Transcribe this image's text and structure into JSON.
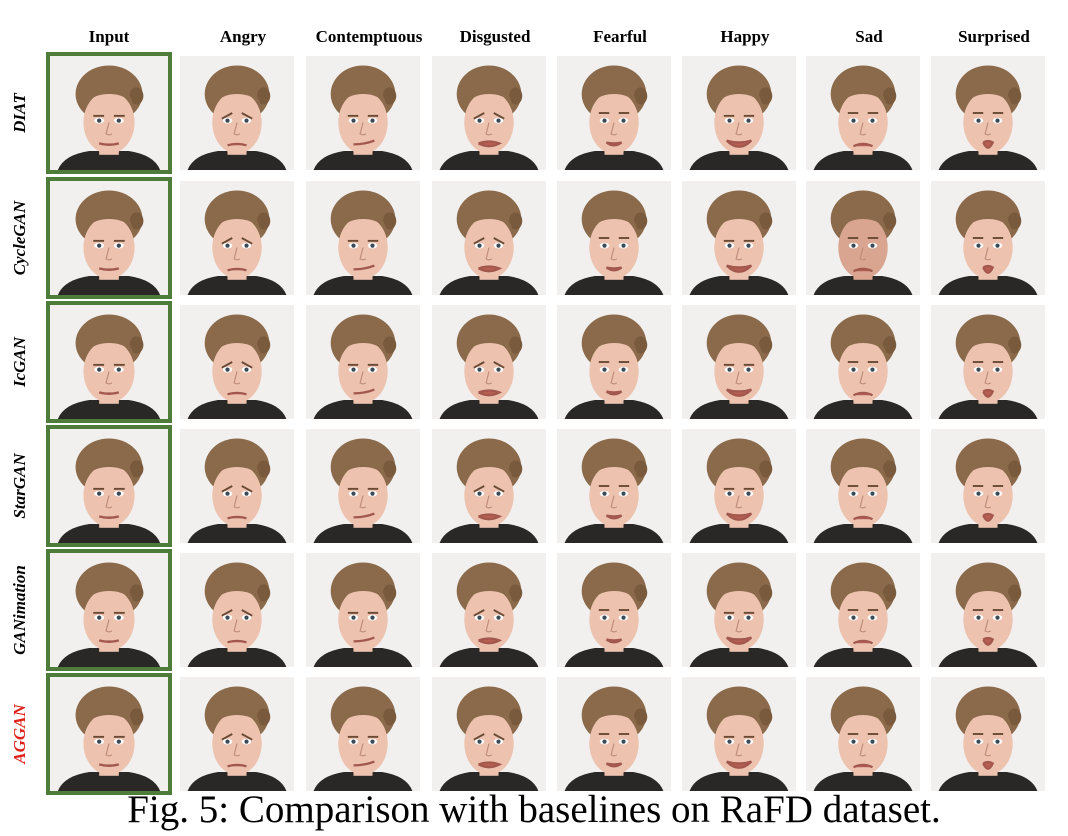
{
  "columns": [
    "Input",
    "Angry",
    "Contemptuous",
    "Disgusted",
    "Fearful",
    "Happy",
    "Sad",
    "Surprised"
  ],
  "rows": [
    {
      "method": "DIAT",
      "color": "#000000"
    },
    {
      "method": "CycleGAN",
      "color": "#000000"
    },
    {
      "method": "IcGAN",
      "color": "#000000"
    },
    {
      "method": "StarGAN",
      "color": "#000000"
    },
    {
      "method": "GANimation",
      "color": "#000000"
    },
    {
      "method": "AGGAN",
      "color": "#e0201b"
    }
  ],
  "input_frame_color": "#4e7d3a",
  "caption": "Fig. 5: Comparison with baselines on RaFD dataset."
}
